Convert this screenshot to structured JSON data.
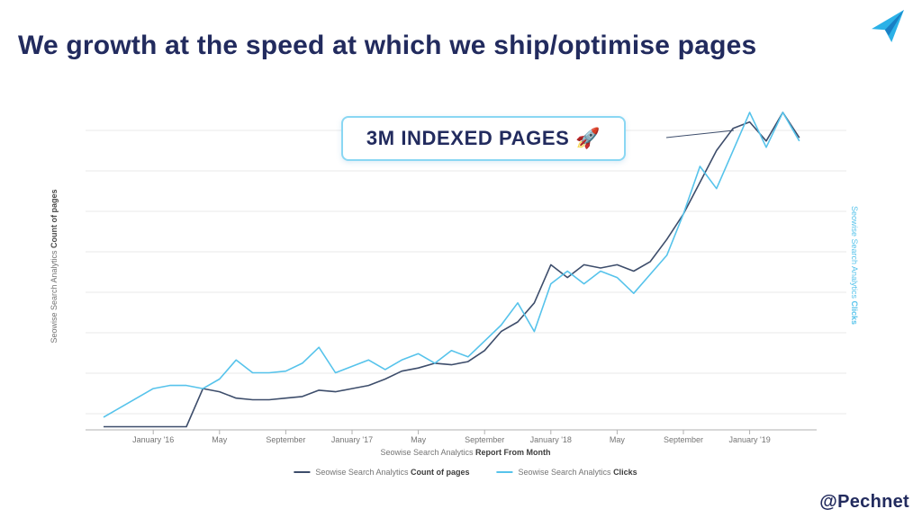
{
  "slide": {
    "title": "We growth at the speed at which we ship/optimise pages",
    "handle": "@Pechnet",
    "logo_icon": "paper-plane-arrow-icon"
  },
  "callout": {
    "text": "3M INDEXED PAGES 🚀"
  },
  "colors": {
    "title": "#222b5e",
    "count_line": "#3d4d6b",
    "clicks_line": "#56c3eb",
    "callout_border": "#8ad7f3",
    "grid": "#e9e9e9",
    "axis_text": "#757575"
  },
  "chart_data": {
    "type": "line",
    "title": "",
    "xlabel_prefix": "Seowise Search Analytics",
    "xlabel_bold": "Report From Month",
    "ylabel_left_prefix": "Seowise Search Analytics",
    "ylabel_left_bold": "Count of pages",
    "ylabel_right_prefix": "Seowise Search Analytics",
    "ylabel_right_bold": "Clicks",
    "x_unit": "month-index (monthly points, Oct '15 through Apr '19)",
    "ylim": [
      0,
      100
    ],
    "grid": "horizontal",
    "legend_position": "bottom",
    "x_ticks": [
      {
        "index": 3,
        "label": "January '16"
      },
      {
        "index": 7,
        "label": "May"
      },
      {
        "index": 11,
        "label": "September"
      },
      {
        "index": 15,
        "label": "January '17"
      },
      {
        "index": 19,
        "label": "May"
      },
      {
        "index": 23,
        "label": "September"
      },
      {
        "index": 27,
        "label": "January '18"
      },
      {
        "index": 31,
        "label": "May"
      },
      {
        "index": 35,
        "label": "September"
      },
      {
        "index": 39,
        "label": "January '19"
      }
    ],
    "series": [
      {
        "name_prefix": "Seowise Search Analytics",
        "name_bold": "Count of pages",
        "color": "#3d4d6b",
        "values": [
          1,
          1,
          1,
          1,
          1,
          1,
          13,
          12,
          10,
          9.5,
          9.5,
          10,
          10.5,
          12.5,
          12,
          13,
          14,
          16,
          18.5,
          19.5,
          21,
          20.5,
          21.5,
          25,
          31,
          34,
          40,
          52,
          48,
          52,
          51,
          52,
          50,
          53,
          60,
          68,
          78,
          88,
          95,
          97,
          91,
          100,
          92
        ]
      },
      {
        "name_prefix": "Seowise Search Analytics",
        "name_bold": "Clicks",
        "color": "#56c3eb",
        "values": [
          4,
          7,
          10,
          13,
          14,
          14,
          13,
          16,
          22,
          18,
          18,
          18.5,
          21,
          26,
          18,
          20,
          22,
          19,
          22,
          24,
          21,
          25,
          23,
          28,
          33,
          40,
          31,
          46,
          50,
          46,
          50,
          48,
          43,
          49,
          55,
          68,
          83,
          76,
          88,
          100,
          89,
          100,
          91
        ]
      }
    ]
  }
}
